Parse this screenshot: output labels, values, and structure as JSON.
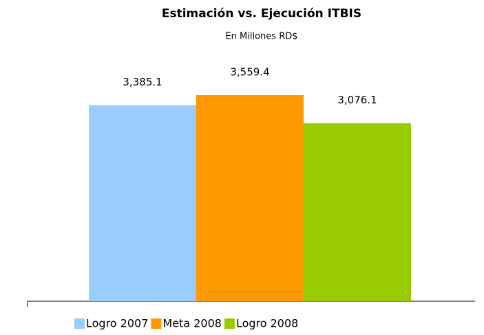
{
  "chart_data": {
    "type": "bar",
    "title": "Estimación vs. Ejecución ITBIS",
    "subtitle": "En Millones RD$",
    "series": [
      {
        "name": "Logro 2007",
        "color": "#99ccff",
        "values": [
          3385.1
        ],
        "value_labels": [
          "3,385.1"
        ]
      },
      {
        "name": "Meta 2008",
        "color": "#ff9900",
        "values": [
          3559.4
        ],
        "value_labels": [
          "3,559.4"
        ]
      },
      {
        "name": "Logro 2008",
        "color": "#99cc00",
        "values": [
          3076.1
        ],
        "value_labels": [
          "3,076.1"
        ]
      }
    ],
    "ylim": [
      0,
      4000
    ],
    "legend": "bottom"
  }
}
